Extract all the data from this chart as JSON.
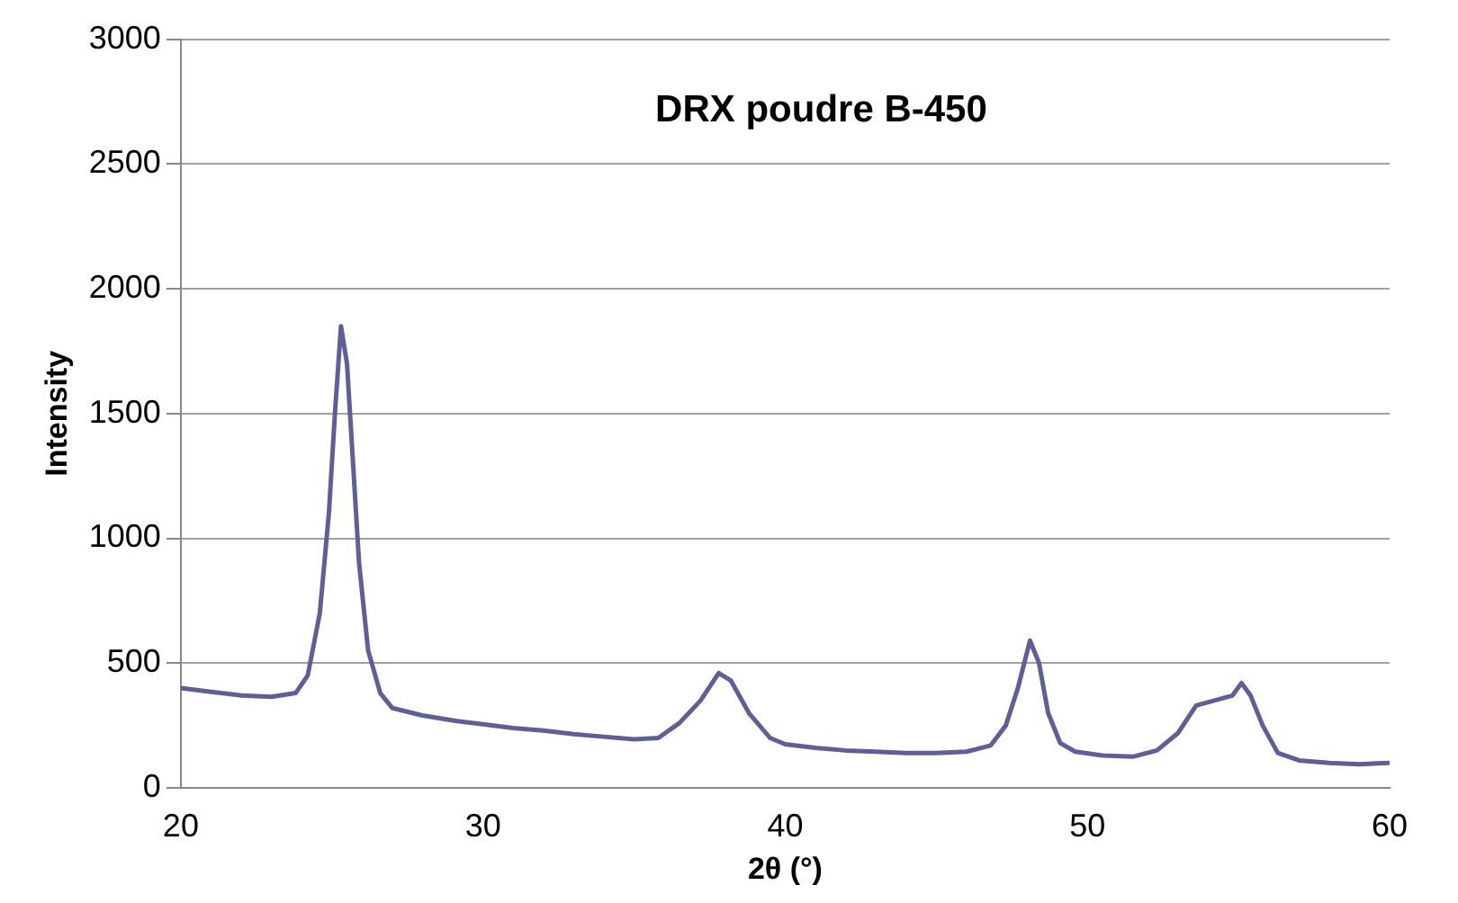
{
  "chart_data": {
    "type": "line",
    "title": "DRX poudre B-450",
    "xlabel": "2θ (°)",
    "ylabel": "Intensity",
    "x": [
      20,
      21,
      22,
      23,
      23.8,
      24.2,
      24.6,
      24.9,
      25.1,
      25.3,
      25.5,
      25.7,
      25.9,
      26.2,
      26.6,
      27,
      28,
      29,
      30,
      31,
      32,
      33,
      34,
      35,
      35.8,
      36.5,
      37.2,
      37.8,
      38.2,
      38.8,
      39.5,
      40,
      41,
      42,
      43,
      44,
      45,
      46,
      46.8,
      47.3,
      47.7,
      48.1,
      48.4,
      48.7,
      49.1,
      49.6,
      50.5,
      51.5,
      52.3,
      53,
      53.6,
      54.2,
      54.8,
      55.1,
      55.4,
      55.8,
      56.3,
      57,
      58,
      59,
      60
    ],
    "series": [
      {
        "color": "#5f5f96",
        "values": [
          400,
          385,
          370,
          365,
          380,
          450,
          700,
          1100,
          1500,
          1850,
          1700,
          1300,
          900,
          550,
          380,
          320,
          290,
          270,
          255,
          240,
          230,
          215,
          205,
          195,
          200,
          260,
          350,
          460,
          430,
          300,
          200,
          175,
          160,
          150,
          145,
          140,
          140,
          145,
          170,
          250,
          400,
          590,
          500,
          300,
          180,
          145,
          130,
          125,
          150,
          220,
          330,
          350,
          370,
          420,
          370,
          250,
          140,
          110,
          100,
          95,
          100
        ]
      }
    ],
    "xlim": [
      20,
      60
    ],
    "xticks": [
      20,
      30,
      40,
      50,
      60
    ],
    "ylim": [
      0,
      3000
    ],
    "yticks": [
      0,
      500,
      1000,
      1500,
      2000,
      2500,
      3000
    ],
    "grid": "y",
    "legend": false,
    "marker": "none",
    "line_style": "solid"
  }
}
